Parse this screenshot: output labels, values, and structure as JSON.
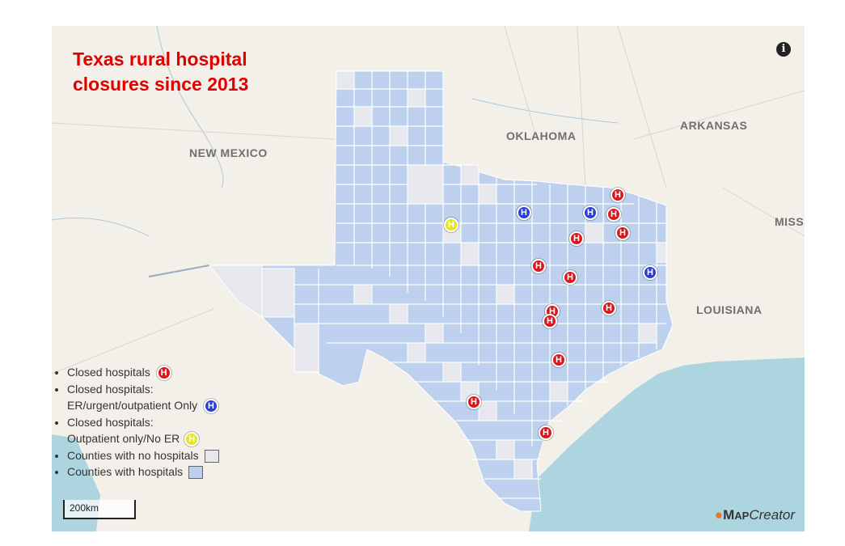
{
  "map": {
    "title": "Texas rural hospital\nclosures since 2013",
    "state_labels": {
      "new_mexico": "NEW MEXICO",
      "oklahoma": "OKLAHOMA",
      "arkansas": "ARKANSAS",
      "louisiana": "LOUISIANA",
      "mississippi": "MISS"
    },
    "info_icon": "i",
    "scale_label": "200km",
    "brand": {
      "prefix": "M",
      "name1": "AP",
      "name2": "Creator"
    },
    "colors": {
      "closed": "#d71920",
      "er_only": "#2b3fd6",
      "outpatient_only": "#e6e619",
      "county_with_hospitals": "#bdd0ee",
      "county_no_hospitals": "#e6e8ee",
      "water": "#acd5e0",
      "land": "#f3f0ea"
    },
    "marker_letter": "H"
  },
  "legend": {
    "closed": "Closed hospitals",
    "er_line1": "Closed hospitals:",
    "er_line2": "ER/urgent/outpatient Only",
    "op_line1": "Closed hospitals:",
    "op_line2": "Outpatient only/No ER",
    "no_hosp": "Counties with no hospitals",
    "with_hosp": "Counties with hospitals"
  }
}
